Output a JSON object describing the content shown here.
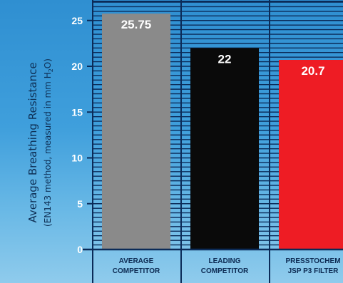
{
  "chart_data": {
    "type": "bar",
    "ylabel_line1": "Average Breathing Resistance",
    "ylabel_line2_pre": "(EN143 method, measured in mm H",
    "ylabel_line2_sub": "2",
    "ylabel_line2_post": "O)",
    "ylim": [
      0,
      27.5
    ],
    "yticks": [
      0,
      5,
      10,
      15,
      20,
      25
    ],
    "grid": true,
    "categories": [
      [
        "AVERAGE",
        "COMPETITOR"
      ],
      [
        "LEADING",
        "COMPETITOR"
      ],
      [
        "PRESSTOCHEM",
        "JSP P3 FILTER"
      ]
    ],
    "values": [
      25.75,
      22,
      20.7
    ],
    "value_labels": [
      "25.75",
      "22",
      "20.7"
    ],
    "colors": [
      "#8a8a8a",
      "#0a0a0a",
      "#ee1c24"
    ]
  }
}
